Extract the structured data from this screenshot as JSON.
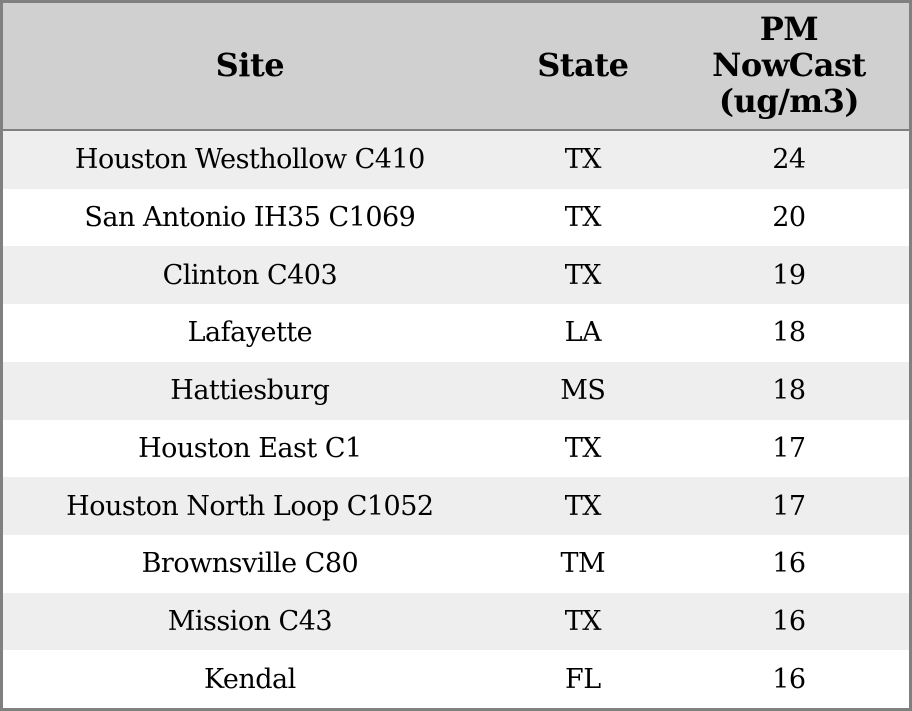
{
  "header": {
    "site": "Site",
    "state": "State",
    "pm_display": "PM\nNowCast\n(ug/m3)",
    "pm": "PM NowCast (ug/m3)"
  },
  "rows": [
    {
      "site": "Houston Westhollow C410",
      "state": "TX",
      "pm": "24"
    },
    {
      "site": "San Antonio IH35 C1069",
      "state": "TX",
      "pm": "20"
    },
    {
      "site": "Clinton C403",
      "state": "TX",
      "pm": "19"
    },
    {
      "site": "Lafayette",
      "state": "LA",
      "pm": "18"
    },
    {
      "site": "Hattiesburg",
      "state": "MS",
      "pm": "18"
    },
    {
      "site": "Houston East C1",
      "state": "TX",
      "pm": "17"
    },
    {
      "site": "Houston North Loop C1052",
      "state": "TX",
      "pm": "17"
    },
    {
      "site": "Brownsville C80",
      "state": "TM",
      "pm": "16"
    },
    {
      "site": "Mission C43",
      "state": "TX",
      "pm": "16"
    },
    {
      "site": "Kendal",
      "state": "FL",
      "pm": "16"
    }
  ],
  "chart_data": {
    "type": "table",
    "title": "",
    "columns": [
      "Site",
      "State",
      "PM NowCast (ug/m3)"
    ],
    "rows": [
      [
        "Houston Westhollow C410",
        "TX",
        24
      ],
      [
        "San Antonio IH35 C1069",
        "TX",
        20
      ],
      [
        "Clinton C403",
        "TX",
        19
      ],
      [
        "Lafayette",
        "LA",
        18
      ],
      [
        "Hattiesburg",
        "MS",
        18
      ],
      [
        "Houston East C1",
        "TX",
        17
      ],
      [
        "Houston North Loop C1052",
        "TX",
        17
      ],
      [
        "Brownsville C80",
        "TM",
        16
      ],
      [
        "Mission C43",
        "TX",
        16
      ],
      [
        "Kendal",
        "FL",
        16
      ]
    ]
  },
  "colors": {
    "header_bg": "#d0d0d0",
    "row_alt_bg": "#eeeeee",
    "row_bg": "#ffffff",
    "border": "#808080",
    "text": "#000000"
  }
}
